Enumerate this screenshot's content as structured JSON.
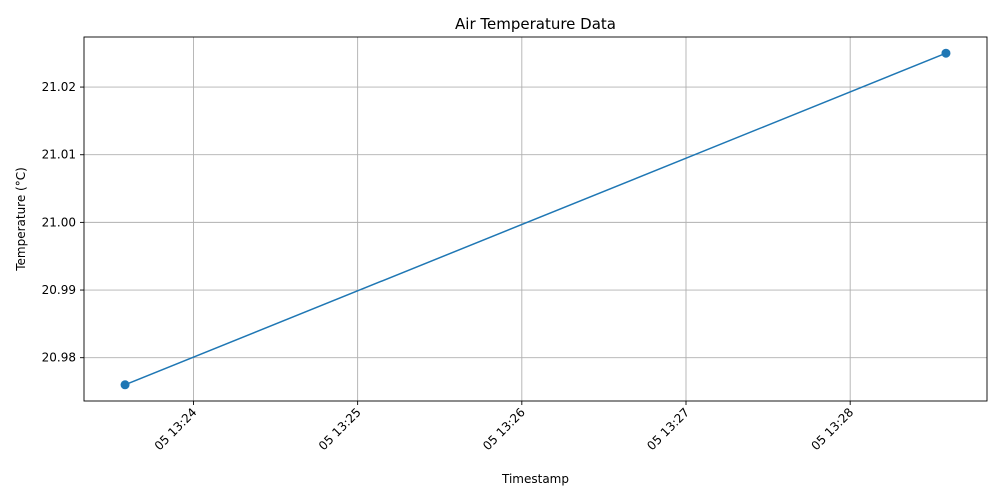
{
  "chart_data": {
    "type": "line",
    "title": "Air Temperature Data",
    "xlabel": "Timestamp",
    "ylabel": "Temperature (°C)",
    "x_ticks": [
      {
        "t": "13:24:00",
        "label": "05 13:24"
      },
      {
        "t": "13:25:00",
        "label": "05 13:25"
      },
      {
        "t": "13:26:00",
        "label": "05 13:26"
      },
      {
        "t": "13:27:00",
        "label": "05 13:27"
      },
      {
        "t": "13:28:00",
        "label": "05 13:28"
      }
    ],
    "y_ticks": [
      {
        "v": 20.98,
        "label": "20.98"
      },
      {
        "v": 20.99,
        "label": "20.99"
      },
      {
        "v": 21.0,
        "label": "21.00"
      },
      {
        "v": 21.01,
        "label": "21.01"
      },
      {
        "v": 21.02,
        "label": "21.02"
      }
    ],
    "xlim": [
      "13:23:20",
      "13:28:50"
    ],
    "ylim": [
      20.9736,
      21.0274
    ],
    "grid": true,
    "legend": "none",
    "series": [
      {
        "color": "#1f77b4",
        "marker": "circle",
        "points": [
          {
            "t": "13:23:35",
            "v": 20.976
          },
          {
            "t": "13:28:35",
            "v": 21.025
          }
        ]
      }
    ]
  }
}
